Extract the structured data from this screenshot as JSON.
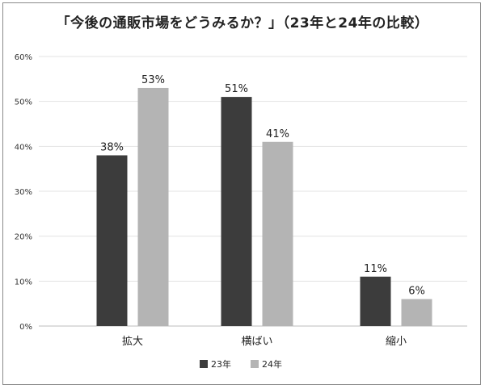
{
  "chart_data": {
    "type": "bar",
    "title": "「今後の通販市場をどうみるか？」（23年と24年の比較）",
    "categories": [
      "拡大",
      "横ばい",
      "縮小"
    ],
    "series": [
      {
        "name": "23年",
        "values": [
          38,
          51,
          11
        ],
        "color": "#3c3c3c"
      },
      {
        "name": "24年",
        "values": [
          53,
          41,
          6
        ],
        "color": "#b4b4b4"
      }
    ],
    "value_suffix": "%",
    "ylim": [
      0,
      60
    ],
    "yticks": [
      0,
      10,
      20,
      30,
      40,
      50,
      60
    ],
    "ytick_labels": [
      "0%",
      "10%",
      "20%",
      "30%",
      "40%",
      "50%",
      "60%"
    ],
    "grid": true,
    "legend": "bottom"
  }
}
